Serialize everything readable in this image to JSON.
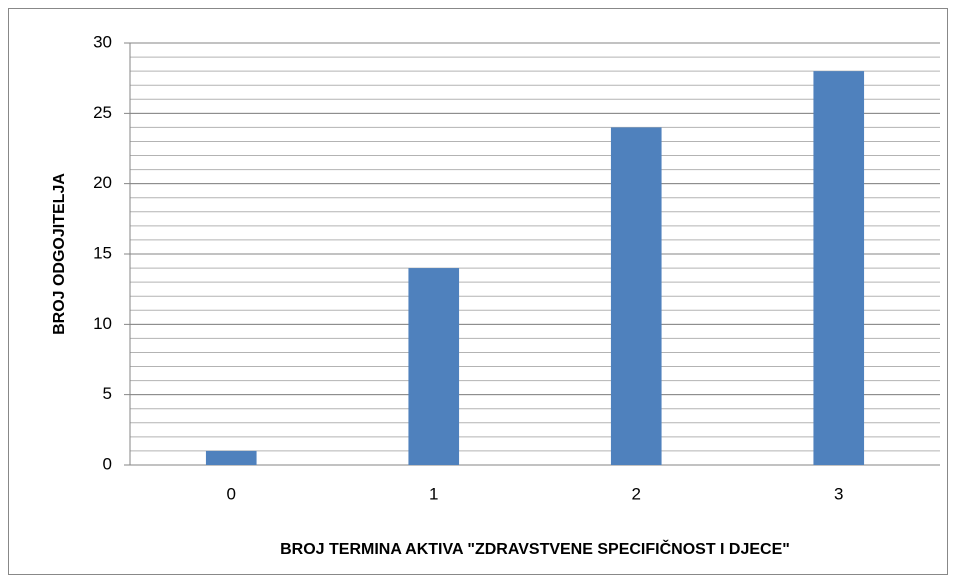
{
  "chart_data": {
    "type": "bar",
    "categories": [
      "0",
      "1",
      "2",
      "3"
    ],
    "values": [
      1,
      14,
      24,
      28
    ],
    "color": "#4f81bd",
    "ylim": [
      0,
      30
    ],
    "yticks": [
      0,
      5,
      10,
      15,
      20,
      25,
      30
    ],
    "grid": true,
    "minor_grid_step": 1,
    "x_label": "BROJ TERMINA AKTIVA \"ZDRAVSTVENE SPECIFIČNOST I DJECE\"",
    "y_label": "BROJ ODGOJITELJA"
  }
}
